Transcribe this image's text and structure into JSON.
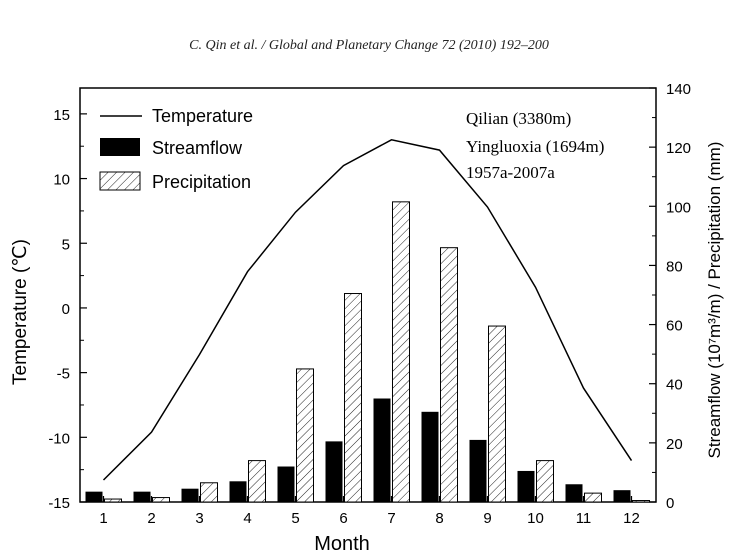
{
  "header": {
    "citation": "C. Qin et al. / Global and Planetary Change 72 (2010) 192–200"
  },
  "chart_data": {
    "type": "bar",
    "x": [
      1,
      2,
      3,
      4,
      5,
      6,
      7,
      8,
      9,
      10,
      11,
      12
    ],
    "categories": [
      "1",
      "2",
      "3",
      "4",
      "5",
      "6",
      "7",
      "8",
      "9",
      "10",
      "11",
      "12"
    ],
    "xlabel": "Month",
    "ylabel_left": "Temperature (℃)",
    "ylabel_right": "Streamflow (10⁷m³/m) / Precipitation (mm)",
    "ylim_left": [
      -15,
      17
    ],
    "ylim_right": [
      0,
      140
    ],
    "yticks_left": [
      -15,
      -10,
      -5,
      0,
      5,
      10,
      15
    ],
    "yticks_right": [
      0,
      20,
      40,
      60,
      80,
      100,
      120,
      140
    ],
    "legend_position": "top-left",
    "series": [
      {
        "name": "Temperature",
        "type": "line",
        "axis": "left",
        "values": [
          -13.3,
          -9.6,
          -3.6,
          2.8,
          7.4,
          11.0,
          13.0,
          12.2,
          7.8,
          1.6,
          -6.2,
          -11.8
        ]
      },
      {
        "name": "Streamflow",
        "type": "bar",
        "axis": "right",
        "color": "#000000",
        "values": [
          3.5,
          3.5,
          4.5,
          7.0,
          12.0,
          20.5,
          35.0,
          30.5,
          21.0,
          10.5,
          6.0,
          4.0
        ]
      },
      {
        "name": "Precipitation",
        "type": "bar",
        "axis": "right",
        "pattern": "hatched",
        "values": [
          1.0,
          1.5,
          6.5,
          14.0,
          45.0,
          70.5,
          101.5,
          86.0,
          59.5,
          14.0,
          3.0,
          0.5
        ]
      }
    ],
    "annotations": [
      "Qilian (3380m)",
      "Yingluoxia (1694m)",
      "1957a-2007a"
    ]
  }
}
